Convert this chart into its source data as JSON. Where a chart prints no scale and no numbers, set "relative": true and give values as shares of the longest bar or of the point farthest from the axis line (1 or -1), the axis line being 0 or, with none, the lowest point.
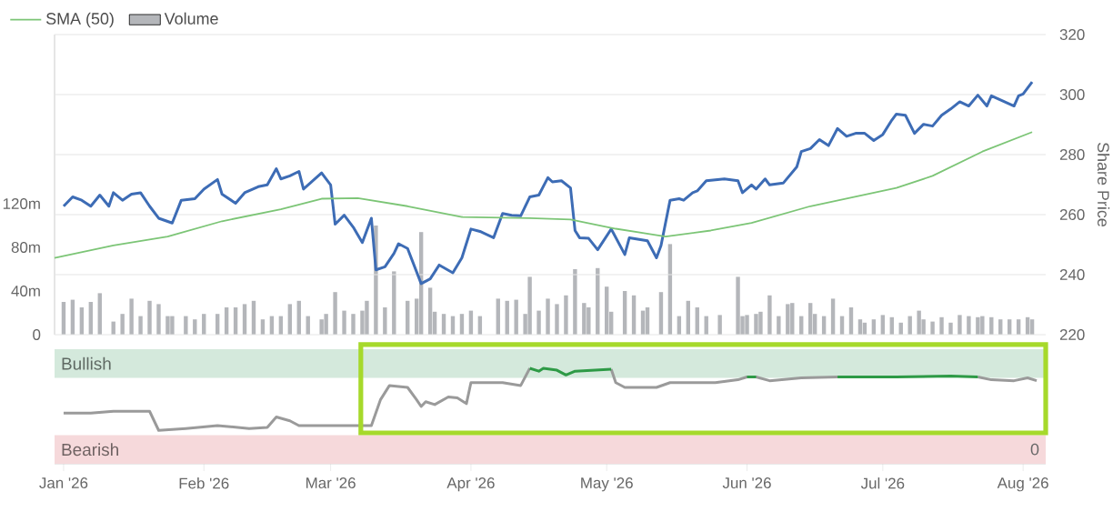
{
  "chart_data": [
    {
      "type": "line",
      "xlim": [
        "2025-12-30",
        "2026-08-06"
      ],
      "ylim": [
        220,
        320
      ],
      "yticks": [
        220,
        240,
        260,
        280,
        300,
        320
      ],
      "ylabel": "Share Price",
      "y2lim": [
        0,
        275
      ],
      "y2ticks": [
        0,
        {
          "value": 40,
          "label": "40m"
        },
        {
          "value": 80,
          "label": "80m"
        },
        {
          "value": 120,
          "label": "120m"
        }
      ],
      "grid": "y",
      "legend": "top left",
      "tick_labels": "y",
      "series": [
        {
          "color": "#3d6cb5",
          "x": [
            "2026-01-01",
            "2026-01-03",
            "2026-01-05",
            "2026-01-07",
            "2026-01-09",
            "2026-01-11",
            "2026-01-12",
            "2026-01-14",
            "2026-01-16",
            "2026-01-18",
            "2026-01-20",
            "2026-01-22",
            "2026-01-25",
            "2026-01-27",
            "2026-01-30",
            "2026-02-01",
            "2026-02-04",
            "2026-02-05",
            "2026-02-08",
            "2026-02-10",
            "2026-02-13",
            "2026-02-15",
            "2026-02-17",
            "2026-02-18",
            "2026-02-20",
            "2026-02-22",
            "2026-02-23",
            "2026-02-27",
            "2026-03-01",
            "2026-03-02",
            "2026-03-04",
            "2026-03-06",
            "2026-03-08",
            "2026-03-10",
            "2026-03-11",
            "2026-03-13",
            "2026-03-15",
            "2026-03-16",
            "2026-03-18",
            "2026-03-21",
            "2026-03-23",
            "2026-03-25",
            "2026-03-28",
            "2026-03-30",
            "2026-04-01",
            "2026-04-03",
            "2026-04-06",
            "2026-04-08",
            "2026-04-10",
            "2026-04-12",
            "2026-04-14",
            "2026-04-16",
            "2026-04-18",
            "2026-04-19",
            "2026-04-21",
            "2026-04-23",
            "2026-04-24",
            "2026-04-25",
            "2026-04-27",
            "2026-04-29",
            "2026-05-02",
            "2026-05-05",
            "2026-05-06",
            "2026-05-10",
            "2026-05-12",
            "2026-05-13",
            "2026-05-15",
            "2026-05-17",
            "2026-05-18",
            "2026-05-20",
            "2026-05-21",
            "2026-05-23",
            "2026-05-27",
            "2026-05-30",
            "2026-05-31",
            "2026-06-02",
            "2026-06-03",
            "2026-06-05",
            "2026-06-06",
            "2026-06-09",
            "2026-06-12",
            "2026-06-13",
            "2026-06-15",
            "2026-06-17",
            "2026-06-19",
            "2026-06-21",
            "2026-06-23",
            "2026-06-25",
            "2026-06-27",
            "2026-06-29",
            "2026-07-01",
            "2026-07-03",
            "2026-07-04",
            "2026-07-06",
            "2026-07-08",
            "2026-07-10",
            "2026-07-12",
            "2026-07-14",
            "2026-07-16",
            "2026-07-18",
            "2026-07-20",
            "2026-07-22",
            "2026-07-24",
            "2026-07-25",
            "2026-07-27",
            "2026-07-30",
            "2026-07-31",
            "2026-08-01",
            "2026-08-03"
          ],
          "values": [
            262.8,
            265.9,
            264.8,
            262.8,
            266.5,
            262.8,
            267.3,
            264.8,
            266.8,
            267.3,
            262.8,
            258.8,
            257.2,
            264.8,
            265.3,
            268.5,
            271.7,
            266.8,
            263.8,
            267.3,
            269.3,
            269.9,
            275.3,
            271.9,
            272.9,
            274.4,
            268.5,
            273.9,
            269.9,
            256.8,
            259.8,
            255.8,
            250.7,
            258.8,
            241.6,
            242.6,
            247.1,
            250.3,
            248.7,
            237.0,
            238.6,
            243.2,
            240.6,
            245.6,
            255.2,
            254.4,
            252.3,
            260.4,
            259.8,
            259.6,
            265.9,
            266.5,
            272.3,
            270.9,
            271.3,
            268.9,
            254.7,
            252.3,
            252.1,
            248.3,
            255.2,
            246.7,
            252.3,
            251.3,
            245.6,
            249.7,
            264.8,
            265.3,
            264.8,
            267.3,
            267.9,
            271.3,
            271.9,
            271.3,
            267.3,
            269.9,
            268.5,
            271.9,
            269.9,
            270.5,
            275.9,
            281.0,
            282.0,
            285.0,
            283.0,
            288.7,
            286.1,
            287.1,
            287.1,
            284.7,
            286.7,
            291.5,
            293.5,
            293.1,
            287.1,
            290.1,
            289.5,
            293.1,
            295.2,
            297.6,
            296.2,
            299.8,
            296.2,
            299.6,
            298.2,
            296.2,
            299.6,
            300.2,
            304.2
          ]
        },
        {
          "name": "SMA (50)",
          "color": "#7cc576",
          "x": [
            "2025-12-30",
            "2026-01-12",
            "2026-01-24",
            "2026-02-05",
            "2026-02-18",
            "2026-02-27",
            "2026-03-07",
            "2026-03-18",
            "2026-03-30",
            "2026-04-14",
            "2026-04-23",
            "2026-05-03",
            "2026-05-14",
            "2026-05-24",
            "2026-06-02",
            "2026-06-15",
            "2026-07-04",
            "2026-07-12",
            "2026-07-23",
            "2026-08-03"
          ],
          "values": [
            245.6,
            249.7,
            252.7,
            257.8,
            261.8,
            265.3,
            265.5,
            262.8,
            259.2,
            258.8,
            258.4,
            255.3,
            252.7,
            254.7,
            257.2,
            262.8,
            268.9,
            272.9,
            281.0,
            287.5
          ]
        },
        {
          "type": "bar",
          "name": "Volume",
          "axis": "y2",
          "color": "#b4b6ba",
          "x": [
            "2026-01-01",
            "2026-01-03",
            "2026-01-05",
            "2026-01-07",
            "2026-01-09",
            "2026-01-12",
            "2026-01-14",
            "2026-01-16",
            "2026-01-18",
            "2026-01-20",
            "2026-01-22",
            "2026-01-24",
            "2026-01-25",
            "2026-01-28",
            "2026-01-30",
            "2026-02-01",
            "2026-02-04",
            "2026-02-06",
            "2026-02-08",
            "2026-02-10",
            "2026-02-12",
            "2026-02-14",
            "2026-02-16",
            "2026-02-18",
            "2026-02-20",
            "2026-02-22",
            "2026-02-24",
            "2026-02-27",
            "2026-02-28",
            "2026-03-02",
            "2026-03-04",
            "2026-03-06",
            "2026-03-08",
            "2026-03-09",
            "2026-03-11",
            "2026-03-13",
            "2026-03-15",
            "2026-03-18",
            "2026-03-20",
            "2026-03-21",
            "2026-03-23",
            "2026-03-24",
            "2026-03-26",
            "2026-03-28",
            "2026-03-30",
            "2026-04-01",
            "2026-04-03",
            "2026-04-07",
            "2026-04-09",
            "2026-04-11",
            "2026-04-13",
            "2026-04-14",
            "2026-04-16",
            "2026-04-18",
            "2026-04-20",
            "2026-04-22",
            "2026-04-24",
            "2026-04-26",
            "2026-04-27",
            "2026-04-29",
            "2026-05-01",
            "2026-05-02",
            "2026-05-05",
            "2026-05-07",
            "2026-05-09",
            "2026-05-10",
            "2026-05-13",
            "2026-05-15",
            "2026-05-17",
            "2026-05-19",
            "2026-05-21",
            "2026-05-23",
            "2026-05-26",
            "2026-05-30",
            "2026-05-31",
            "2026-06-01",
            "2026-06-03",
            "2026-06-04",
            "2026-06-06",
            "2026-06-08",
            "2026-06-10",
            "2026-06-11",
            "2026-06-13",
            "2026-06-15",
            "2026-06-16",
            "2026-06-18",
            "2026-06-20",
            "2026-06-22",
            "2026-06-24",
            "2026-06-26",
            "2026-06-27",
            "2026-06-29",
            "2026-07-01",
            "2026-07-03",
            "2026-07-05",
            "2026-07-07",
            "2026-07-09",
            "2026-07-10",
            "2026-07-12",
            "2026-07-14",
            "2026-07-16",
            "2026-07-18",
            "2026-07-20",
            "2026-07-22",
            "2026-07-23",
            "2026-07-25",
            "2026-07-27",
            "2026-07-29",
            "2026-07-31",
            "2026-08-02",
            "2026-08-03"
          ],
          "values": [
            30,
            32,
            25,
            30,
            38,
            12,
            19,
            33,
            17,
            31,
            28,
            17,
            17,
            17,
            14,
            19,
            19,
            25,
            25,
            28,
            31,
            14,
            17,
            17,
            28,
            31,
            17,
            14,
            19,
            39,
            22,
            19,
            22,
            31,
            100,
            25,
            58,
            31,
            33,
            94,
            43,
            21,
            19,
            17,
            19,
            22,
            17,
            33,
            31,
            32,
            19,
            53,
            22,
            33,
            28,
            36,
            60,
            29,
            25,
            61,
            44,
            21,
            40,
            36,
            22,
            25,
            39,
            83,
            17,
            31,
            25,
            17,
            18,
            53,
            17,
            18,
            19,
            21,
            36,
            17,
            28,
            29,
            17,
            29,
            19,
            17,
            33,
            17,
            25,
            14,
            11,
            14,
            18,
            16,
            11,
            17,
            22,
            14,
            12,
            16,
            11,
            18,
            17,
            16,
            17,
            16,
            14,
            14,
            14,
            16,
            14
          ]
        }
      ]
    },
    {
      "type": "line",
      "relative": true,
      "xlim": [
        "2025-12-30",
        "2026-08-06"
      ],
      "xticks": [
        {
          "value": "2026-01-01",
          "label": "Jan '26"
        },
        {
          "value": "2026-02-01",
          "label": "Feb '26"
        },
        {
          "value": "2026-03-01",
          "label": "Mar '26"
        },
        {
          "value": "2026-04-01",
          "label": "Apr '26"
        },
        {
          "value": "2026-05-01",
          "label": "May '26"
        },
        {
          "value": "2026-06-01",
          "label": "Jun '26"
        },
        {
          "value": "2026-07-01",
          "label": "Jul '26"
        },
        {
          "value": "2026-08-01",
          "label": "Aug '26"
        }
      ],
      "tick_labels": "x",
      "bands": [
        {
          "axis": "y",
          "from": 0.9,
          "to": 1.2,
          "label": "Bullish",
          "color": "#d4e9dc"
        },
        {
          "axis": "y",
          "from": 0,
          "to": 0.3,
          "label": "Bearish",
          "color": "#f6d9db"
        }
      ],
      "annotations": [
        "0"
      ],
      "x": [
        "2026-01-01",
        "2026-01-07",
        "2026-01-12",
        "2026-01-20",
        "2026-01-22",
        "2026-01-28",
        "2026-02-04",
        "2026-02-11",
        "2026-02-15",
        "2026-02-17",
        "2026-02-20",
        "2026-02-22",
        "2026-03-06",
        "2026-03-10",
        "2026-03-12",
        "2026-03-14",
        "2026-03-18",
        "2026-03-20",
        "2026-03-21",
        "2026-03-22",
        "2026-03-24",
        "2026-03-27",
        "2026-03-29",
        "2026-03-31",
        "2026-04-01",
        "2026-04-08",
        "2026-04-12",
        "2026-04-14",
        "2026-04-16",
        "2026-04-17",
        "2026-04-20",
        "2026-04-22",
        "2026-04-24",
        "2026-05-02",
        "2026-05-03",
        "2026-05-05",
        "2026-05-12",
        "2026-05-15",
        "2026-05-25",
        "2026-05-30",
        "2026-06-01",
        "2026-06-03",
        "2026-06-06",
        "2026-06-13",
        "2026-06-21",
        "2026-07-04",
        "2026-07-16",
        "2026-07-22",
        "2026-07-25",
        "2026-07-30",
        "2026-08-02",
        "2026-08-04"
      ],
      "series": [
        {
          "color": "#9a9a9a",
          "values": [
            0.53,
            0.53,
            0.55,
            0.55,
            0.35,
            0.37,
            0.4,
            0.37,
            0.38,
            0.49,
            0.45,
            0.4,
            0.4,
            0.4,
            0.67,
            0.82,
            0.8,
            0.67,
            0.6,
            0.65,
            0.62,
            0.7,
            0.69,
            0.63,
            0.85,
            0.85,
            0.82,
            1,
            null,
            null,
            null,
            null,
            null,
            0.99,
            0.85,
            0.8,
            0.8,
            0.85,
            0.85,
            0.88,
            0.91,
            0.91,
            0.87,
            0.9,
            0.91,
            null,
            null,
            0.91,
            0.88,
            0.87,
            0.9,
            0.87
          ]
        },
        {
          "color": "#2e9a46",
          "values": [
            null,
            null,
            null,
            null,
            null,
            null,
            null,
            null,
            null,
            null,
            null,
            null,
            null,
            null,
            null,
            null,
            null,
            null,
            null,
            null,
            null,
            null,
            null,
            null,
            null,
            null,
            null,
            1,
            0.97,
            1,
            0.98,
            0.93,
            0.97,
            0.99,
            null,
            null,
            null,
            null,
            null,
            null,
            0.91,
            0.91,
            null,
            null,
            0.91,
            0.91,
            0.92,
            0.91,
            null,
            null,
            null,
            null
          ]
        }
      ]
    }
  ]
}
